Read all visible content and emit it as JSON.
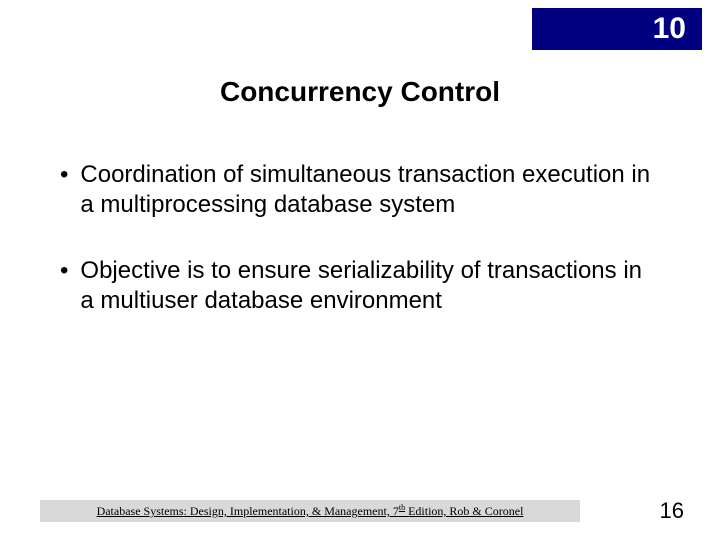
{
  "chapter_badge": "10",
  "title": "Concurrency Control",
  "bullets": [
    "Coordination of simultaneous transaction execution in a multiprocessing database system",
    "Objective is to ensure serializability of transactions in a multiuser database environment"
  ],
  "footer": {
    "prefix": "Database Systems: Design, Implementation, & Management, 7",
    "sup": "th",
    "suffix": " Edition, Rob & Coronel"
  },
  "page_number": "16",
  "colors": {
    "badge_bg": "#000080",
    "badge_text": "#ffffff",
    "footer_bg": "#d9d9d9",
    "text": "#000000",
    "background": "#ffffff"
  }
}
